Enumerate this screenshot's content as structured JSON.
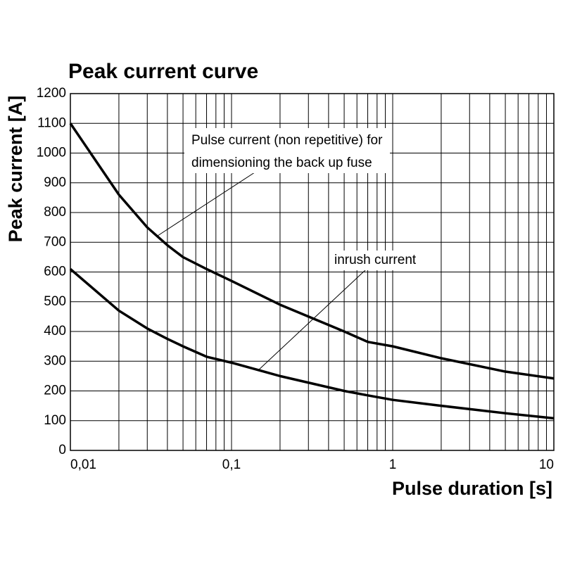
{
  "chart_data": {
    "type": "line",
    "title": "Peak current curve",
    "x_label": "Pulse duration [s]",
    "y_label": "Peak current [A]",
    "x_scale": "log",
    "grid": true,
    "minor_grid": true,
    "xlim": [
      0.01,
      10
    ],
    "xticks": [
      {
        "value": 0.01,
        "label": "0,01"
      },
      {
        "value": 0.1,
        "label": "0,1"
      },
      1,
      10
    ],
    "ylim": [
      0,
      1200
    ],
    "yticks": [
      0,
      100,
      200,
      300,
      400,
      500,
      600,
      700,
      800,
      900,
      1000,
      1100,
      1200
    ],
    "x": [
      0.01,
      0.02,
      0.03,
      0.04,
      0.05,
      0.07,
      0.1,
      0.2,
      0.5,
      0.7,
      1,
      2,
      5,
      10
    ],
    "series": [
      {
        "color": "#000000",
        "values": [
          1100,
          860,
          750,
          690,
          650,
          610,
          570,
          490,
          400,
          365,
          350,
          310,
          265,
          242
        ]
      },
      {
        "color": "#000000",
        "values": [
          610,
          470,
          410,
          375,
          350,
          315,
          295,
          250,
          200,
          185,
          170,
          150,
          125,
          108
        ]
      }
    ],
    "annotations": [
      {
        "lines": [
          "Pulse current (non repetitive) for",
          "dimensioning the back up fuse"
        ]
      },
      {
        "lines": [
          "inrush current"
        ]
      }
    ]
  }
}
